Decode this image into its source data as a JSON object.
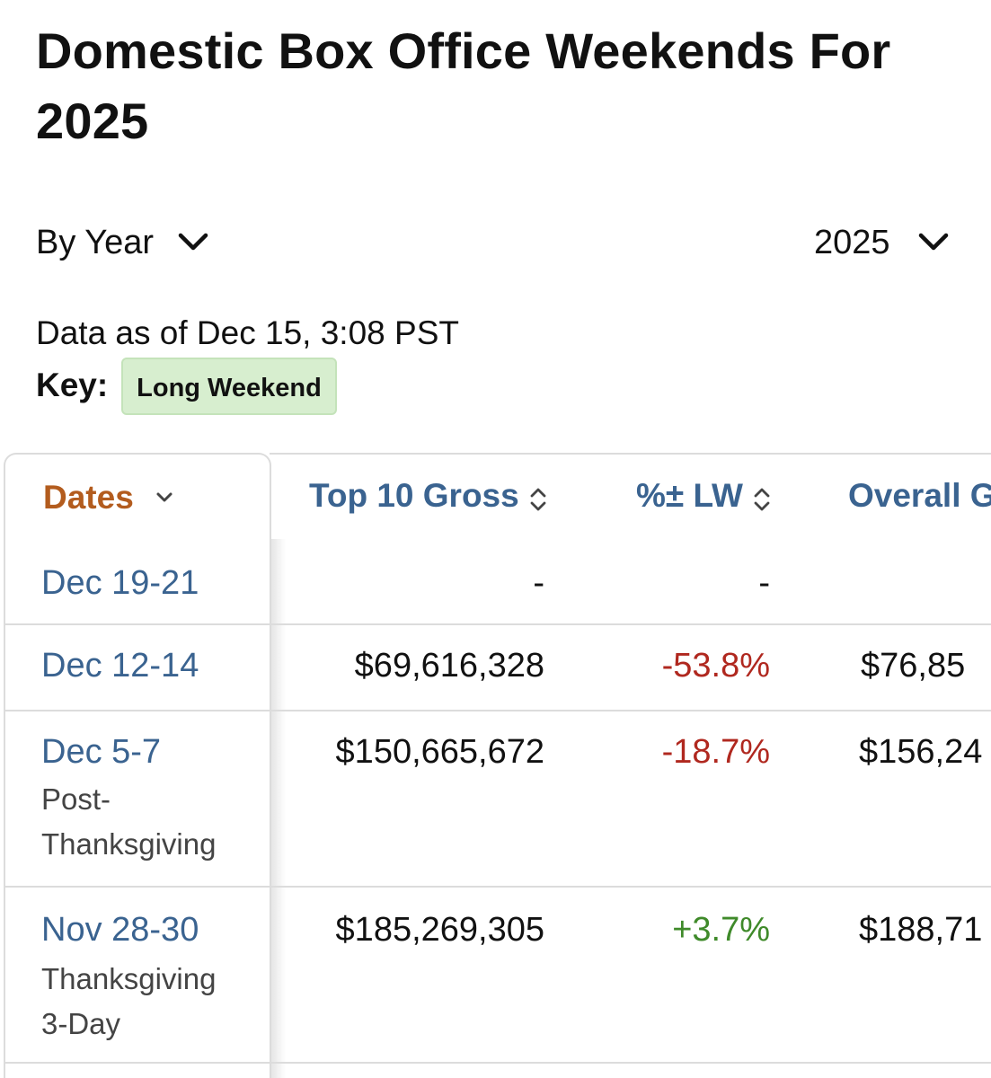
{
  "page": {
    "title": "Domestic Box Office Weekends For 2025"
  },
  "filters": {
    "period_label": "By Year",
    "year_label": "2025"
  },
  "meta": {
    "as_of": "Data as of Dec 15, 3:08 PST",
    "key_label": "Key:",
    "key_badge": "Long Weekend"
  },
  "colors": {
    "date_link": "#3a6390",
    "active_header": "#b35c1e",
    "negative": "#b0281f",
    "positive": "#3f8a2a",
    "long_weekend_badge": "#d7eecf"
  },
  "table": {
    "headers": {
      "dates": "Dates",
      "gross": "Top 10 Gross",
      "pct_lw": "%± LW",
      "overall": "Overall G"
    },
    "rows": [
      {
        "date": "Dec 19-21",
        "sub1": "",
        "sub2": "",
        "gross": "-",
        "pct": "-",
        "overall": ""
      },
      {
        "date": "Dec 12-14",
        "sub1": "",
        "sub2": "",
        "gross": "$69,616,328",
        "pct": "-53.8%",
        "overall": "$76,85"
      },
      {
        "date": "Dec 5-7",
        "sub1": "Post-",
        "sub2": "Thanksgiving",
        "gross": "$150,665,672",
        "pct": "-18.7%",
        "overall": "$156,24"
      },
      {
        "date": "Nov 28-30",
        "sub1": "Thanksgiving",
        "sub2": "3-Day",
        "gross": "$185,269,305",
        "pct": "+3.7%",
        "overall": "$188,71"
      }
    ]
  }
}
